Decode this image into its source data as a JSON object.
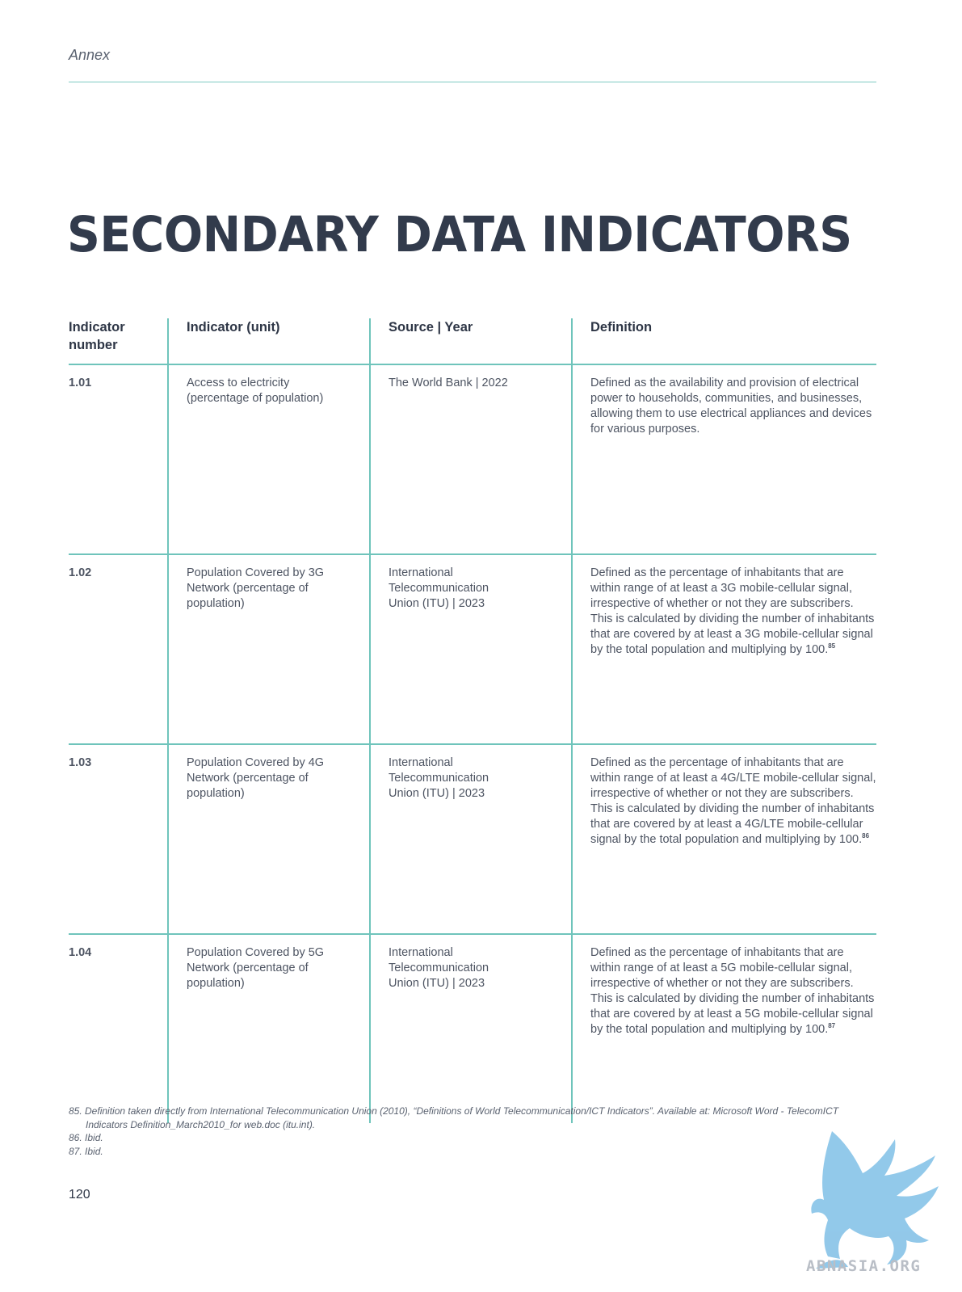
{
  "header": {
    "running_head": "Annex"
  },
  "page_title": "SECONDARY DATA INDICATORS",
  "table": {
    "columns": [
      "Indicator number",
      "Indicator (unit)",
      "Source | Year",
      "Definition"
    ],
    "rows": [
      {
        "number": "1.01",
        "indicator": "Access to electricity (percentage of population)",
        "source": "The World Bank | 2022",
        "definition": "Defined as the availability and provision of electrical power to households, communities, and businesses, allowing them to use electrical appliances and devices for various purposes.",
        "footnote_ref": ""
      },
      {
        "number": "1.02",
        "indicator": "Population Covered by 3G Network (percentage of population)",
        "source": "International Telecommunication Union (ITU) | 2023",
        "definition": "Defined as the percentage of inhabitants that are within range of at least a 3G mobile-cellular signal, irrespective of whether or not they are subscribers. This is calculated by dividing the number of inhabitants that are covered by at least a 3G mobile-cellular signal by the total population and multiplying by 100.",
        "footnote_ref": "85"
      },
      {
        "number": "1.03",
        "indicator": "Population Covered by 4G Network (percentage of population)",
        "source": "International Telecommunication Union (ITU) | 2023",
        "definition": "Defined as the percentage of inhabitants that are within range of at least a 4G/LTE mobile-cellular signal, irrespective of whether or not they are subscribers. This is calculated by dividing the number of inhabitants that are covered by at least a 4G/LTE mobile-cellular signal by the total population and multiplying by 100.",
        "footnote_ref": "86"
      },
      {
        "number": "1.04",
        "indicator": "Population Covered by 5G Network (percentage of population)",
        "source": "International Telecommunication Union (ITU) | 2023",
        "definition": "Defined as the percentage of inhabitants that are within range of at least a 5G mobile-cellular signal, irrespective of whether or not they are subscribers. This is calculated by dividing the number of inhabitants that are covered by at least a 5G mobile-cellular signal by the total population and multiplying by 100.",
        "footnote_ref": "87"
      }
    ]
  },
  "footnotes": [
    "85. Definition taken directly from International Telecommunication Union (2010), “Definitions of World Telecommunication/ICT Indicators”. Available at: Microsoft Word - TelecomICT Indicators Definition_March2010_for web.doc (itu.int).",
    "86. Ibid.",
    "87. Ibid."
  ],
  "page_number": "120",
  "watermark": {
    "text": "ABNASIA.ORG",
    "icon": "griffin-logo-icon",
    "color": "#7fbfe6"
  },
  "colors": {
    "rule": "#6fc4bb",
    "title": "#323b4c"
  }
}
